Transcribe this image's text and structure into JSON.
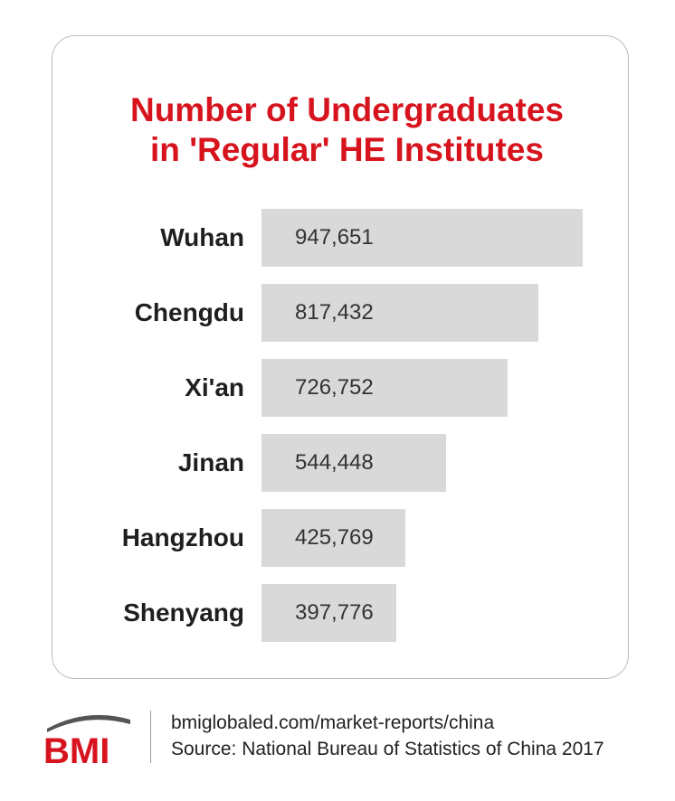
{
  "chart_data": {
    "type": "bar",
    "orientation": "horizontal",
    "title": "Number of Undergraduates in 'Regular' HE Institutes",
    "title_lines": [
      "Number of Undergraduates",
      "in 'Regular' HE Institutes"
    ],
    "categories": [
      "Wuhan",
      "Chengdu",
      "Xi'an",
      "Jinan",
      "Hangzhou",
      "Shenyang"
    ],
    "values": [
      947651,
      817432,
      726752,
      544448,
      425769,
      397776
    ],
    "value_labels": [
      "947,651",
      "817,432",
      "726,752",
      "544,448",
      "425,769",
      "397,776"
    ],
    "bar_color": "#d9d9d9",
    "title_color": "#d7141e",
    "grid": false,
    "legend": "none"
  },
  "footer": {
    "logo_text": "BMI",
    "url": "bmiglobaled.com/market-reports/china",
    "source": "Source: National Bureau of Statistics of China 2017"
  },
  "colors": {
    "brand_red": "#d7141e",
    "logo_grey": "#555555"
  }
}
